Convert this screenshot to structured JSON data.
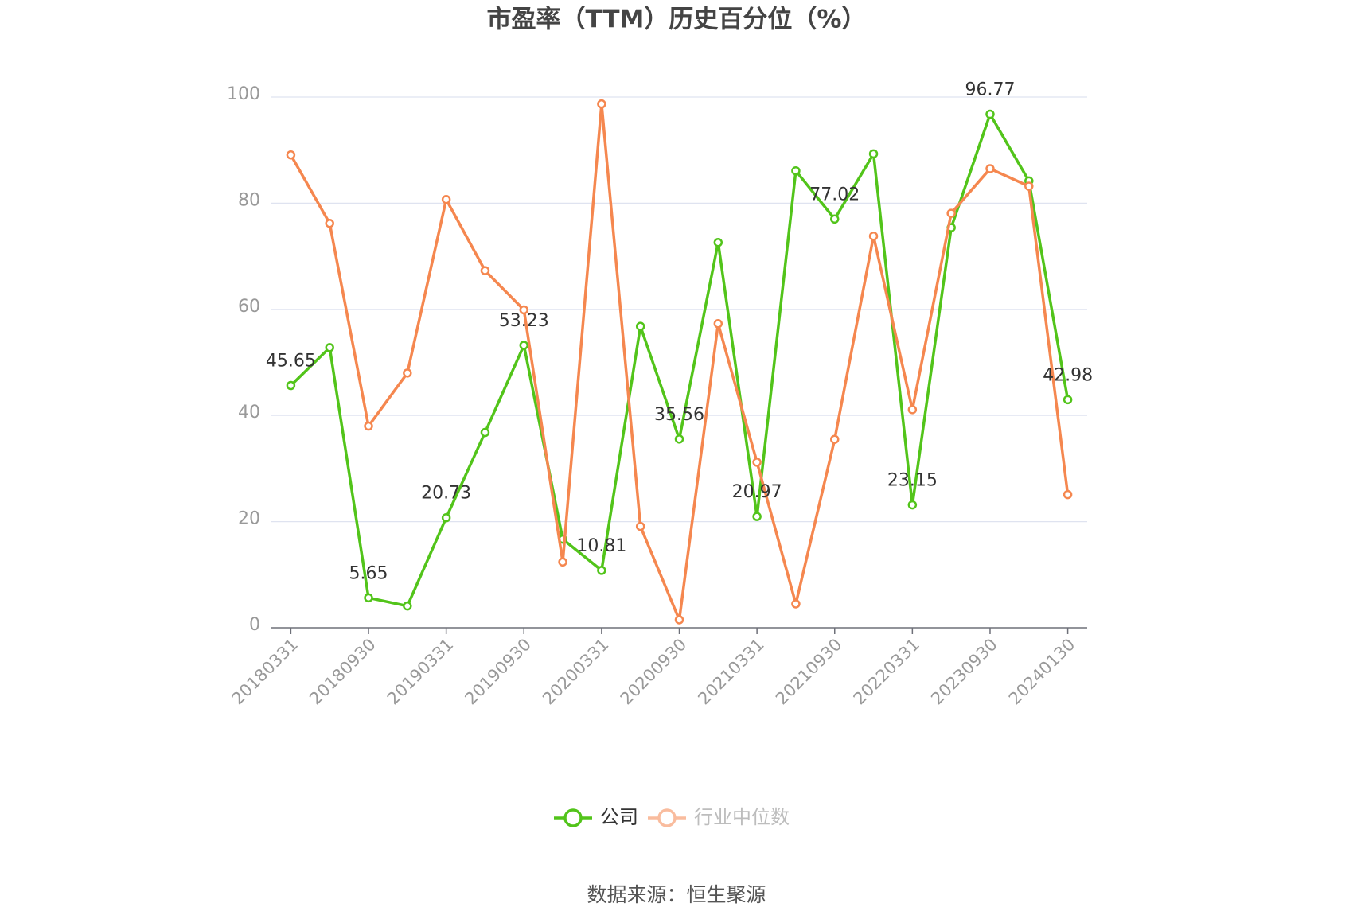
{
  "chart_data": {
    "type": "line",
    "title": "市盈率（TTM）历史百分位（%）",
    "source": "数据来源：恒生聚源",
    "categories": [
      "20180331",
      null,
      "20180930",
      null,
      "20190331",
      null,
      "20190930",
      null,
      "20200331",
      null,
      "20200930",
      null,
      "20210331",
      null,
      "20210930",
      null,
      "20220331",
      null,
      "20230930",
      null,
      "20240130"
    ],
    "ylim": [
      0,
      100
    ],
    "yticks": [
      0,
      20,
      40,
      60,
      80,
      100
    ],
    "grid": true,
    "legend": "bottom",
    "series": [
      {
        "name": "公司",
        "color": "#52c41a",
        "values": [
          45.65,
          52.8,
          5.65,
          4.1,
          20.73,
          36.8,
          53.23,
          16.7,
          10.81,
          56.8,
          35.56,
          72.6,
          20.97,
          86.1,
          77.02,
          89.3,
          23.15,
          75.4,
          96.77,
          84.2,
          42.98
        ],
        "value_labels": [
          "45.65",
          null,
          "5.65",
          null,
          "20.73",
          null,
          "53.23",
          null,
          "10.81",
          null,
          "35.56",
          null,
          "20.97",
          null,
          "77.02",
          null,
          "23.15",
          null,
          "96.77",
          null,
          "42.98"
        ]
      },
      {
        "name": "行业中位数",
        "color": "#f5874f",
        "values": [
          89.1,
          76.2,
          38.0,
          48.0,
          80.7,
          67.3,
          59.9,
          12.4,
          98.7,
          19.1,
          1.5,
          57.3,
          31.2,
          4.5,
          35.5,
          73.8,
          41.1,
          78.1,
          86.5,
          83.2,
          25.1
        ]
      }
    ]
  }
}
